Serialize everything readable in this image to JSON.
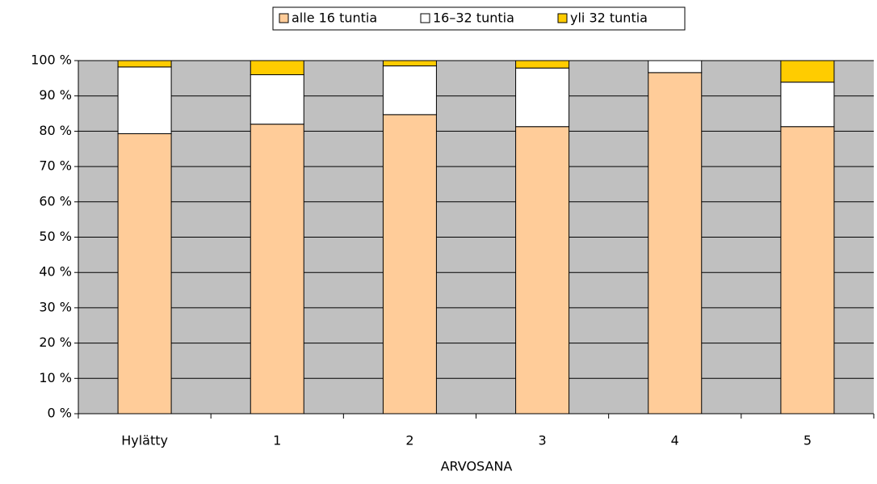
{
  "chart_data": {
    "type": "stacked_bar",
    "x_label": "ARVOSANA",
    "categories": [
      "Hylätty",
      "1",
      "2",
      "3",
      "4",
      "5"
    ],
    "series": [
      {
        "name": "alle 16 tuntia",
        "color": "#ffcc99",
        "values": [
          79.3,
          82.0,
          84.7,
          81.3,
          96.6,
          81.3
        ]
      },
      {
        "name": "16–32 tuntia",
        "color": "#ffffff",
        "values": [
          18.9,
          14.0,
          13.8,
          16.6,
          3.4,
          12.6
        ]
      },
      {
        "name": "yli 32 tuntia",
        "color": "#ffcc00",
        "values": [
          1.8,
          4.0,
          1.5,
          2.1,
          0,
          6.1
        ]
      }
    ],
    "ylim": [
      0,
      100
    ],
    "yticks": [
      {
        "value": 0,
        "label": "0 %"
      },
      {
        "value": 10,
        "label": "10 %"
      },
      {
        "value": 20,
        "label": "20 %"
      },
      {
        "value": 30,
        "label": "30 %"
      },
      {
        "value": 40,
        "label": "40 %"
      },
      {
        "value": 50,
        "label": "50 %"
      },
      {
        "value": 60,
        "label": "60 %"
      },
      {
        "value": 70,
        "label": "70 %"
      },
      {
        "value": 80,
        "label": "80 %"
      },
      {
        "value": 90,
        "label": "90 %"
      },
      {
        "value": 100,
        "label": "100 %"
      }
    ],
    "grid": true,
    "legend": "top",
    "plot_background": "#c0c0c0"
  }
}
